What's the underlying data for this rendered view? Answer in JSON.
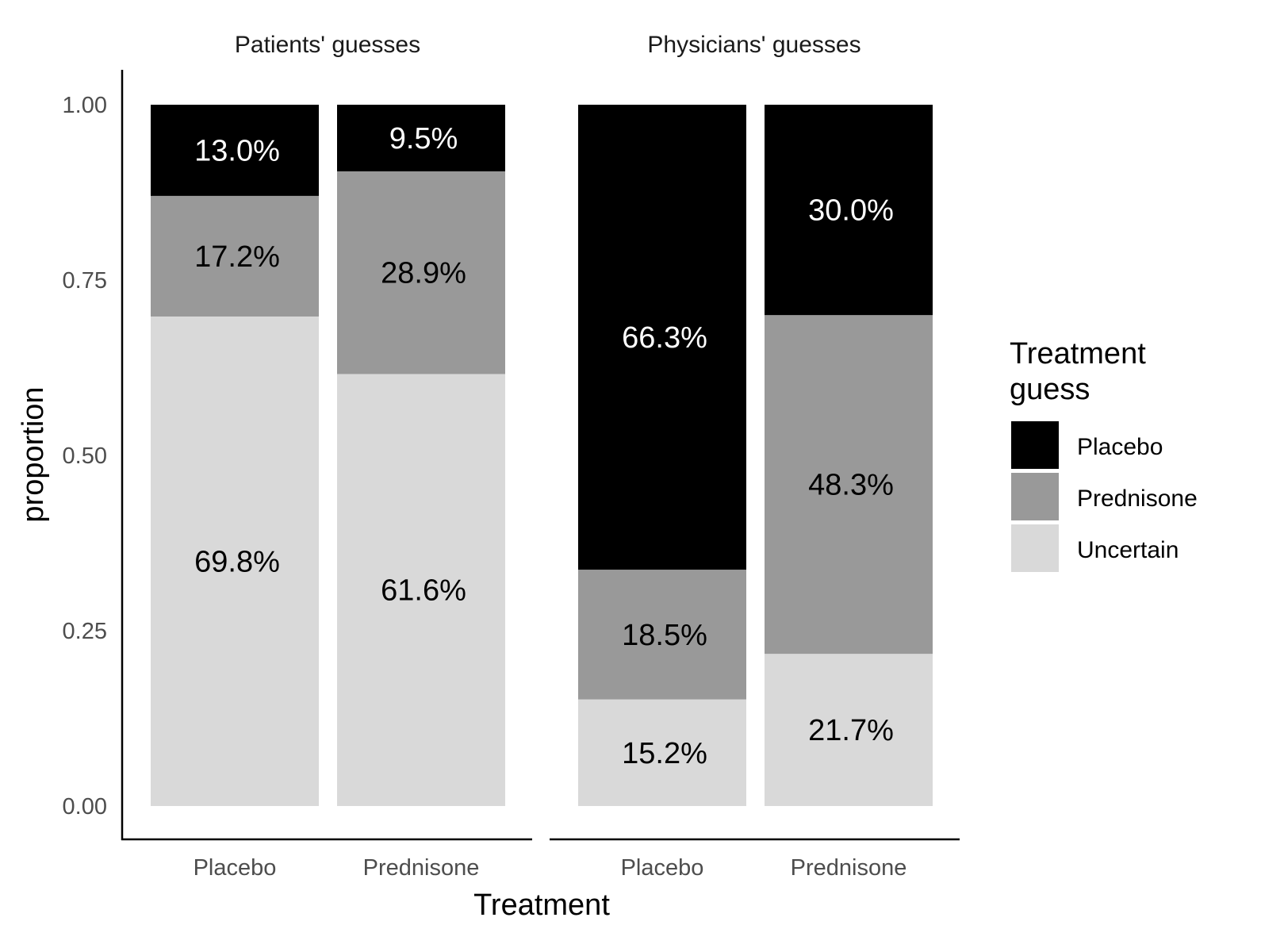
{
  "chart_data": {
    "type": "bar",
    "stacked": true,
    "xlabel": "Treatment",
    "ylabel": "proportion",
    "ylim": [
      0,
      1
    ],
    "yticks": [
      "0.00",
      "0.25",
      "0.50",
      "0.75",
      "1.00"
    ],
    "ytick_values": [
      0,
      0.25,
      0.5,
      0.75,
      1
    ],
    "categories": [
      "Placebo",
      "Prednisone"
    ],
    "legend": {
      "title_line1": "Treatment",
      "title_line2": "guess",
      "placement": "right",
      "entries": [
        {
          "name": "Placebo",
          "color": "#000000"
        },
        {
          "name": "Prednisone",
          "color": "#999999"
        },
        {
          "name": "Uncertain",
          "color": "#d9d9d9"
        }
      ]
    },
    "panels": [
      {
        "title": "Patients' guesses",
        "bars": [
          {
            "category": "Placebo",
            "segments": [
              {
                "name": "Uncertain",
                "value": 0.698,
                "label": "69.8%"
              },
              {
                "name": "Prednisone",
                "value": 0.172,
                "label": "17.2%"
              },
              {
                "name": "Placebo",
                "value": 0.13,
                "label": "13.0%"
              }
            ]
          },
          {
            "category": "Prednisone",
            "segments": [
              {
                "name": "Uncertain",
                "value": 0.616,
                "label": "61.6%"
              },
              {
                "name": "Prednisone",
                "value": 0.289,
                "label": "28.9%"
              },
              {
                "name": "Placebo",
                "value": 0.095,
                "label": "9.5%"
              }
            ]
          }
        ]
      },
      {
        "title": "Physicians' guesses",
        "bars": [
          {
            "category": "Placebo",
            "segments": [
              {
                "name": "Uncertain",
                "value": 0.152,
                "label": "15.2%"
              },
              {
                "name": "Prednisone",
                "value": 0.185,
                "label": "18.5%"
              },
              {
                "name": "Placebo",
                "value": 0.663,
                "label": "66.3%"
              }
            ]
          },
          {
            "category": "Prednisone",
            "segments": [
              {
                "name": "Uncertain",
                "value": 0.217,
                "label": "21.7%"
              },
              {
                "name": "Prednisone",
                "value": 0.483,
                "label": "48.3%"
              },
              {
                "name": "Placebo",
                "value": 0.3,
                "label": "30.0%"
              }
            ]
          }
        ]
      }
    ]
  }
}
